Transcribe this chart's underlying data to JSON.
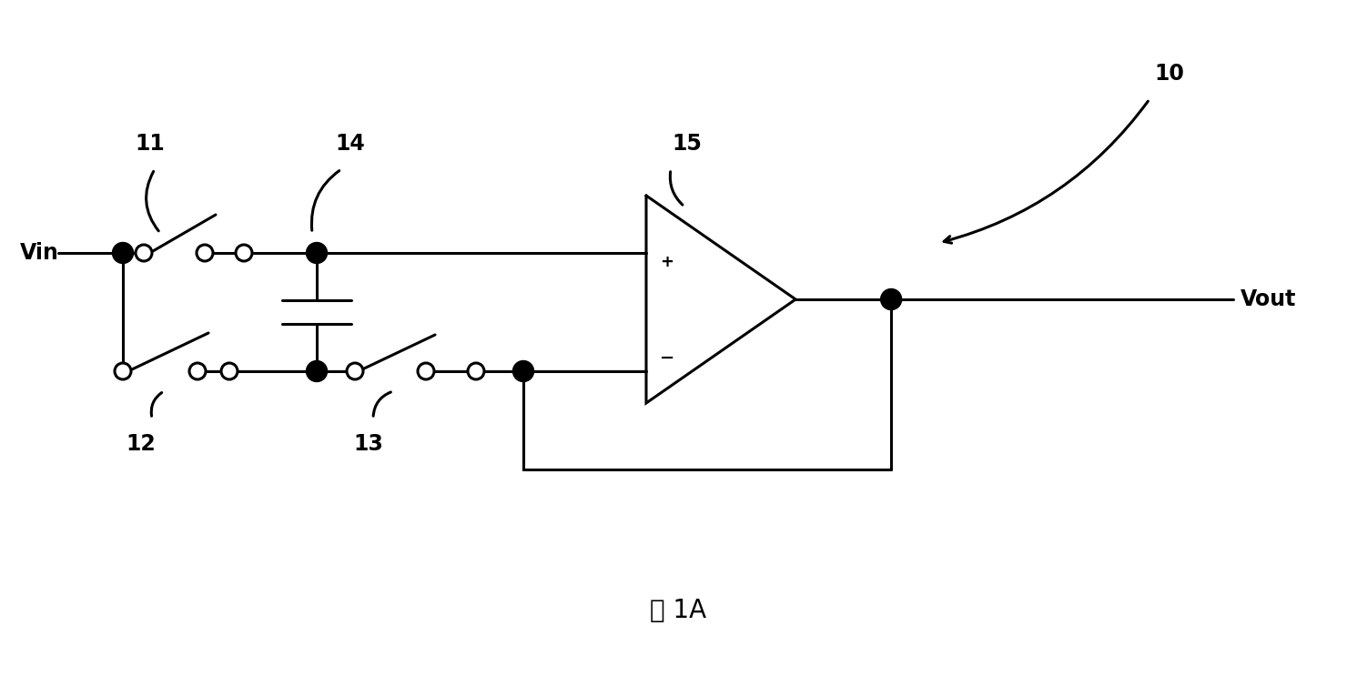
{
  "bg_color": "#ffffff",
  "line_color": "#000000",
  "line_width": 2.2,
  "title": "图 1A",
  "title_fontsize": 20,
  "label_Vin": "Vin",
  "label_Vout": "Vout",
  "label_10": "10",
  "label_11": "11",
  "label_12": "12",
  "label_13": "13",
  "label_14": "14",
  "label_15": "15",
  "label_plus": "+",
  "label_minus": "−"
}
